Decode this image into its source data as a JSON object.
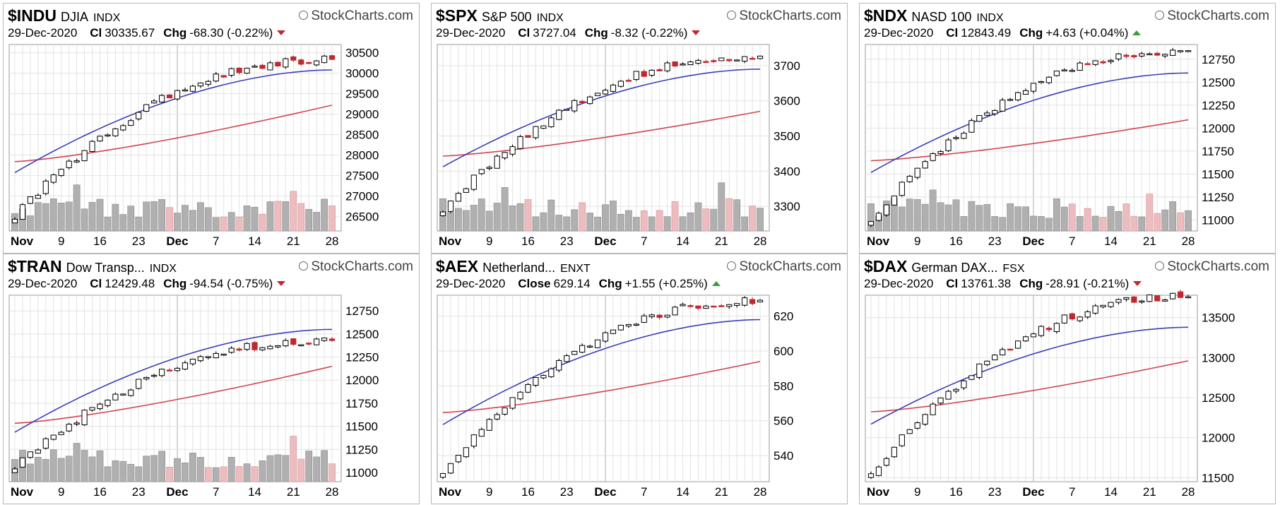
{
  "panels": [
    {
      "symbol": "$INDU",
      "name": "DJIA",
      "exchange": "INDX",
      "brand": "StockCharts.com",
      "date": "29-Dec-2020",
      "close_label": "Cl",
      "close": "30335.67",
      "chg_label": "Chg",
      "chg": "-68.30 (-0.22%)",
      "direction": "down"
    },
    {
      "symbol": "$SPX",
      "name": "S&P 500",
      "exchange": "INDX",
      "brand": "StockCharts.com",
      "date": "29-Dec-2020",
      "close_label": "Cl",
      "close": "3727.04",
      "chg_label": "Chg",
      "chg": "-8.32 (-0.22%)",
      "direction": "down"
    },
    {
      "symbol": "$NDX",
      "name": "NASD 100",
      "exchange": "INDX",
      "brand": "StockCharts.com",
      "date": "29-Dec-2020",
      "close_label": "Cl",
      "close": "12843.49",
      "chg_label": "Chg",
      "chg": "+4.63 (+0.04%)",
      "direction": "up"
    },
    {
      "symbol": "$TRAN",
      "name": "Dow Transp...",
      "exchange": "INDX",
      "brand": "StockCharts.com",
      "date": "29-Dec-2020",
      "close_label": "Cl",
      "close": "12429.48",
      "chg_label": "Chg",
      "chg": "-94.54 (-0.75%)",
      "direction": "down"
    },
    {
      "symbol": "$AEX",
      "name": "Netherland...",
      "exchange": "ENXT",
      "brand": "StockCharts.com",
      "date": "29-Dec-2020",
      "close_label": "Close",
      "close": "629.14",
      "chg_label": "Chg",
      "chg": "+1.55 (+0.25%)",
      "direction": "up"
    },
    {
      "symbol": "$DAX",
      "name": "German DAX...",
      "exchange": "FSX",
      "brand": "StockCharts.com",
      "date": "29-Dec-2020",
      "close_label": "Cl",
      "close": "13761.38",
      "chg_label": "Chg",
      "chg": "-28.91 (-0.21%)",
      "direction": "down"
    }
  ],
  "chart_data": [
    {
      "type": "candlestick",
      "title": "$INDU",
      "x_tick_labels": [
        "Nov",
        "9",
        "16",
        "23",
        "Dec",
        "7",
        "14",
        "21",
        "28"
      ],
      "y_ticks": [
        26500,
        27000,
        27500,
        28000,
        28500,
        29000,
        29500,
        30000,
        30500
      ],
      "ylim": [
        26150,
        30700
      ],
      "close_start": 26500,
      "close_end": 30335.67,
      "ma_short_end": 30080,
      "ma_long_end": 29220,
      "volume": true,
      "grid": true
    },
    {
      "type": "candlestick",
      "title": "$SPX",
      "x_tick_labels": [
        "Nov",
        "9",
        "16",
        "23",
        "Dec",
        "7",
        "14",
        "21",
        "28"
      ],
      "y_ticks": [
        3300,
        3400,
        3500,
        3600,
        3700
      ],
      "ylim": [
        3230,
        3760
      ],
      "close_start": 3290,
      "close_end": 3727.04,
      "ma_short_end": 3690,
      "ma_long_end": 3570,
      "volume": true,
      "grid": true
    },
    {
      "type": "candlestick",
      "title": "$NDX",
      "x_tick_labels": [
        "Nov",
        "9",
        "16",
        "23",
        "Dec",
        "7",
        "14",
        "21",
        "28"
      ],
      "y_ticks": [
        11000,
        11250,
        11500,
        11750,
        12000,
        12250,
        12500,
        12750
      ],
      "ylim": [
        10880,
        12910
      ],
      "close_start": 11000,
      "close_end": 12843.49,
      "ma_short_end": 12600,
      "ma_long_end": 12090,
      "volume": true,
      "grid": true
    },
    {
      "type": "candlestick",
      "title": "$TRAN",
      "x_tick_labels": [
        "Nov",
        "9",
        "16",
        "23",
        "Dec",
        "7",
        "14",
        "21",
        "28"
      ],
      "y_ticks": [
        11000,
        11250,
        11500,
        11750,
        12000,
        12250,
        12500,
        12750
      ],
      "ylim": [
        10900,
        12920
      ],
      "close_start": 11050,
      "close_end": 12429.48,
      "ma_short_end": 12550,
      "ma_long_end": 12150,
      "volume": true,
      "grid": true
    },
    {
      "type": "candlestick",
      "title": "$AEX",
      "x_tick_labels": [
        "Nov",
        "9",
        "16",
        "23",
        "Dec",
        "7",
        "14",
        "21",
        "28"
      ],
      "y_ticks": [
        540,
        560,
        580,
        600,
        620
      ],
      "ylim": [
        525,
        632
      ],
      "close_start": 530,
      "close_end": 629.14,
      "ma_short_end": 618,
      "ma_long_end": 594,
      "volume": false,
      "grid": true
    },
    {
      "type": "candlestick",
      "title": "$DAX",
      "x_tick_labels": [
        "Nov",
        "9",
        "16",
        "23",
        "Dec",
        "7",
        "14",
        "21",
        "28"
      ],
      "y_ticks": [
        11500,
        12000,
        12500,
        13000,
        13500
      ],
      "ylim": [
        11450,
        13780
      ],
      "close_start": 11550,
      "close_end": 13761.38,
      "ma_short_end": 13380,
      "ma_long_end": 12960,
      "volume": false,
      "grid": true
    }
  ],
  "colors": {
    "up_candle": "#ffffff",
    "down_candle": "#c0282f",
    "candle_edge": "#000000",
    "ma_short": "#3b3fb5",
    "ma_long": "#d0454f",
    "volume_gray": "#b0b0b0",
    "volume_pink": "#ecbcbf",
    "grid": "#e3e3e3",
    "grid_major": "#bbbbbb"
  }
}
